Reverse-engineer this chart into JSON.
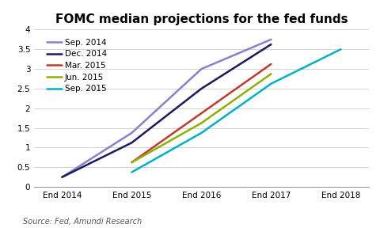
{
  "title": "FOMC median projections for the fed funds",
  "source_text": "Source: Fed, Amundi Research",
  "x_labels": [
    "End 2014",
    "End 2015",
    "End 2016",
    "End 2017",
    "End 2018"
  ],
  "x_positions": [
    0,
    1,
    2,
    3,
    4
  ],
  "series": [
    {
      "label": "Sep. 2014",
      "color": "#8B7FCC",
      "x": [
        0,
        1,
        2,
        3
      ],
      "y": [
        0.25,
        1.375,
        3.0,
        3.75
      ]
    },
    {
      "label": "Dec. 2014",
      "color": "#1a1a5e",
      "x": [
        0,
        1,
        2,
        3
      ],
      "y": [
        0.25,
        1.125,
        2.5,
        3.625
      ]
    },
    {
      "label": "Mar. 2015",
      "color": "#c0392b",
      "x": [
        1,
        2,
        3
      ],
      "y": [
        0.625,
        1.875,
        3.125
      ]
    },
    {
      "label": "Jun. 2015",
      "color": "#8db000",
      "x": [
        1,
        2,
        3
      ],
      "y": [
        0.625,
        1.625,
        2.875
      ]
    },
    {
      "label": "Sep. 2015",
      "color": "#00b0c8",
      "x": [
        1,
        2,
        3,
        4
      ],
      "y": [
        0.375,
        1.375,
        2.625,
        3.5
      ]
    }
  ],
  "ylim": [
    0,
    4.0
  ],
  "yticks": [
    0,
    0.5,
    1.0,
    1.5,
    2.0,
    2.5,
    3.0,
    3.5,
    4.0
  ],
  "xlim": [
    -0.4,
    4.4
  ],
  "background_color": "#ffffff",
  "grid_color": "#cccccc",
  "title_fontsize": 11,
  "legend_fontsize": 7.5,
  "tick_fontsize": 7.5,
  "source_fontsize": 7,
  "linewidth": 1.8
}
